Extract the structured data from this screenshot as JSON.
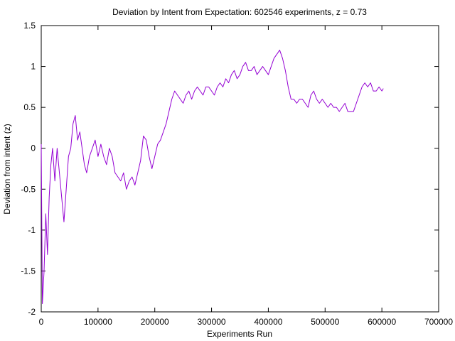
{
  "chart_data": {
    "type": "line",
    "title": "Deviation by Intent from Expectation: 602546 experiments, z = 0.73",
    "xlabel": "Experiments Run",
    "ylabel": "Deviation from intent (z)",
    "xlim": [
      0,
      700000
    ],
    "ylim": [
      -2,
      1.5
    ],
    "xticks": [
      0,
      100000,
      200000,
      300000,
      400000,
      500000,
      600000,
      700000
    ],
    "yticks": [
      -2,
      -1.5,
      -1,
      -0.5,
      0,
      0.5,
      1,
      1.5
    ],
    "grid": false,
    "series": [
      {
        "color": "#9400d3",
        "x": [
          0,
          2000,
          5000,
          8000,
          11000,
          14000,
          17000,
          20000,
          24000,
          28000,
          32000,
          36000,
          40000,
          44000,
          48000,
          52000,
          56000,
          60000,
          64000,
          68000,
          72000,
          76000,
          80000,
          85000,
          90000,
          95000,
          100000,
          105000,
          110000,
          115000,
          120000,
          125000,
          130000,
          135000,
          140000,
          145000,
          150000,
          155000,
          160000,
          165000,
          170000,
          175000,
          180000,
          185000,
          190000,
          195000,
          200000,
          205000,
          210000,
          215000,
          220000,
          225000,
          230000,
          235000,
          240000,
          245000,
          250000,
          255000,
          260000,
          265000,
          270000,
          275000,
          280000,
          285000,
          290000,
          295000,
          300000,
          305000,
          310000,
          315000,
          320000,
          325000,
          330000,
          335000,
          340000,
          345000,
          350000,
          355000,
          360000,
          365000,
          370000,
          375000,
          380000,
          385000,
          390000,
          395000,
          400000,
          405000,
          410000,
          415000,
          420000,
          425000,
          430000,
          435000,
          440000,
          445000,
          450000,
          455000,
          460000,
          465000,
          470000,
          475000,
          480000,
          485000,
          490000,
          495000,
          500000,
          505000,
          510000,
          515000,
          520000,
          525000,
          530000,
          535000,
          540000,
          545000,
          550000,
          555000,
          560000,
          565000,
          570000,
          575000,
          580000,
          585000,
          590000,
          595000,
          600000,
          602546
        ],
        "y": [
          0.05,
          -1.9,
          -1.5,
          -0.8,
          -1.3,
          -0.6,
          -0.2,
          0.0,
          -0.4,
          0.0,
          -0.3,
          -0.6,
          -0.9,
          -0.5,
          -0.1,
          0.0,
          0.3,
          0.4,
          0.1,
          0.2,
          0.0,
          -0.2,
          -0.3,
          -0.1,
          0.0,
          0.1,
          -0.1,
          0.05,
          -0.1,
          -0.2,
          0.0,
          -0.1,
          -0.3,
          -0.35,
          -0.4,
          -0.3,
          -0.5,
          -0.4,
          -0.35,
          -0.45,
          -0.3,
          -0.15,
          0.15,
          0.1,
          -0.1,
          -0.25,
          -0.1,
          0.05,
          0.1,
          0.2,
          0.3,
          0.45,
          0.6,
          0.7,
          0.65,
          0.6,
          0.55,
          0.65,
          0.7,
          0.6,
          0.7,
          0.75,
          0.7,
          0.65,
          0.75,
          0.75,
          0.7,
          0.65,
          0.75,
          0.8,
          0.75,
          0.85,
          0.8,
          0.9,
          0.95,
          0.85,
          0.9,
          1.0,
          1.05,
          0.95,
          0.95,
          1.0,
          0.9,
          0.95,
          1.0,
          0.95,
          0.9,
          1.0,
          1.1,
          1.15,
          1.2,
          1.1,
          0.95,
          0.75,
          0.6,
          0.6,
          0.55,
          0.6,
          0.6,
          0.55,
          0.5,
          0.65,
          0.7,
          0.6,
          0.55,
          0.6,
          0.55,
          0.5,
          0.55,
          0.5,
          0.5,
          0.45,
          0.5,
          0.55,
          0.45,
          0.45,
          0.45,
          0.55,
          0.65,
          0.75,
          0.8,
          0.75,
          0.8,
          0.7,
          0.7,
          0.75,
          0.7,
          0.73
        ]
      }
    ]
  }
}
